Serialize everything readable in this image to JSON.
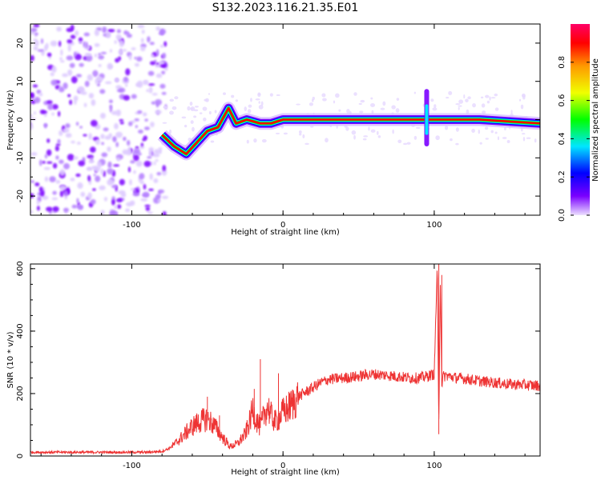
{
  "figure": {
    "title": "S132.2023.116.21.35.E01"
  },
  "chart_data": [
    {
      "type": "heatmap",
      "xlabel": "Height of straight line (km)",
      "ylabel": "Frequency (Hz)",
      "xlim": [
        -167,
        170
      ],
      "ylim": [
        -25,
        25
      ],
      "x_ticks": [
        -100,
        0,
        100
      ],
      "x_tick_labels": [
        "-100",
        "0",
        "100"
      ],
      "y_ticks": [
        -20,
        -10,
        0,
        10,
        20
      ],
      "y_tick_labels": [
        "-20",
        "-10",
        "0",
        "10",
        "20"
      ],
      "grid": false,
      "signal_band": {
        "description": "dominant ridge near 0 Hz",
        "points": [
          {
            "x": -80,
            "f": -4
          },
          {
            "x": -72,
            "f": -7
          },
          {
            "x": -64,
            "f": -9
          },
          {
            "x": -57,
            "f": -6
          },
          {
            "x": -50,
            "f": -3
          },
          {
            "x": -43,
            "f": -2
          },
          {
            "x": -36,
            "f": 3
          },
          {
            "x": -31,
            "f": -1
          },
          {
            "x": -24,
            "f": 0
          },
          {
            "x": -15,
            "f": -1
          },
          {
            "x": -8,
            "f": -1
          },
          {
            "x": 0,
            "f": 0
          },
          {
            "x": 10,
            "f": 0
          },
          {
            "x": 50,
            "f": 0
          },
          {
            "x": 95,
            "f": 0
          },
          {
            "x": 130,
            "f": 0
          },
          {
            "x": 170,
            "f": -1
          }
        ]
      },
      "colorbar": {
        "label": "Normalized spectral amplitude",
        "range": [
          0,
          1
        ],
        "ticks": [
          0.0,
          0.2,
          0.4,
          0.6,
          0.8
        ],
        "tick_labels": [
          "0.0",
          "0.2",
          "0.4",
          "0.6",
          "0.8"
        ],
        "colors": [
          "#ece0ff",
          "#7a00ff",
          "#0000ff",
          "#00e6ff",
          "#00ff00",
          "#f0ff00",
          "#ff9900",
          "#ff0000",
          "#ff0066"
        ]
      }
    },
    {
      "type": "line",
      "xlabel": "Height of straight line (km)",
      "ylabel": "SNR (10 * v/v)",
      "xlim": [
        -167,
        170
      ],
      "ylim": [
        0,
        615
      ],
      "x_ticks": [
        -100,
        0,
        100
      ],
      "x_tick_labels": [
        "-100",
        "0",
        "100"
      ],
      "y_ticks": [
        0,
        200,
        400,
        600
      ],
      "y_tick_labels": [
        "0",
        "200",
        "400",
        "600"
      ],
      "grid": false,
      "color": "#ee3333",
      "series": [
        {
          "x": [
            -167,
            -150,
            -130,
            -110,
            -90,
            -80,
            -75,
            -70,
            -65,
            -60,
            -55,
            -50,
            -45,
            -40,
            -35,
            -30,
            -25,
            -22,
            -20,
            -18,
            -15,
            -12,
            -10,
            -8,
            -5,
            -3,
            0,
            5,
            10,
            15,
            20,
            25,
            30,
            40,
            50,
            55,
            60,
            70,
            80,
            85,
            90,
            95,
            98,
            100,
            102,
            103,
            104,
            105,
            106,
            108,
            110,
            115,
            120,
            130,
            140,
            150,
            160,
            165,
            170
          ],
          "y": [
            12,
            12,
            12,
            12,
            12,
            15,
            25,
            45,
            70,
            95,
            110,
            120,
            95,
            60,
            30,
            40,
            70,
            110,
            150,
            120,
            90,
            140,
            160,
            130,
            110,
            120,
            140,
            160,
            190,
            205,
            220,
            235,
            245,
            250,
            255,
            260,
            262,
            258,
            252,
            250,
            250,
            255,
            260,
            262,
            615,
            70,
            580,
            230,
            255,
            258,
            255,
            250,
            248,
            240,
            235,
            230,
            228,
            226,
            226
          ]
        }
      ],
      "spikes": [
        {
          "x": -50,
          "y": 190
        },
        {
          "x": -42,
          "y": 130
        },
        {
          "x": -19,
          "y": 215
        },
        {
          "x": -15,
          "y": 310
        },
        {
          "x": -3,
          "y": 265
        },
        {
          "x": 103,
          "y": 615
        },
        {
          "x": 105,
          "y": 580
        }
      ]
    }
  ]
}
